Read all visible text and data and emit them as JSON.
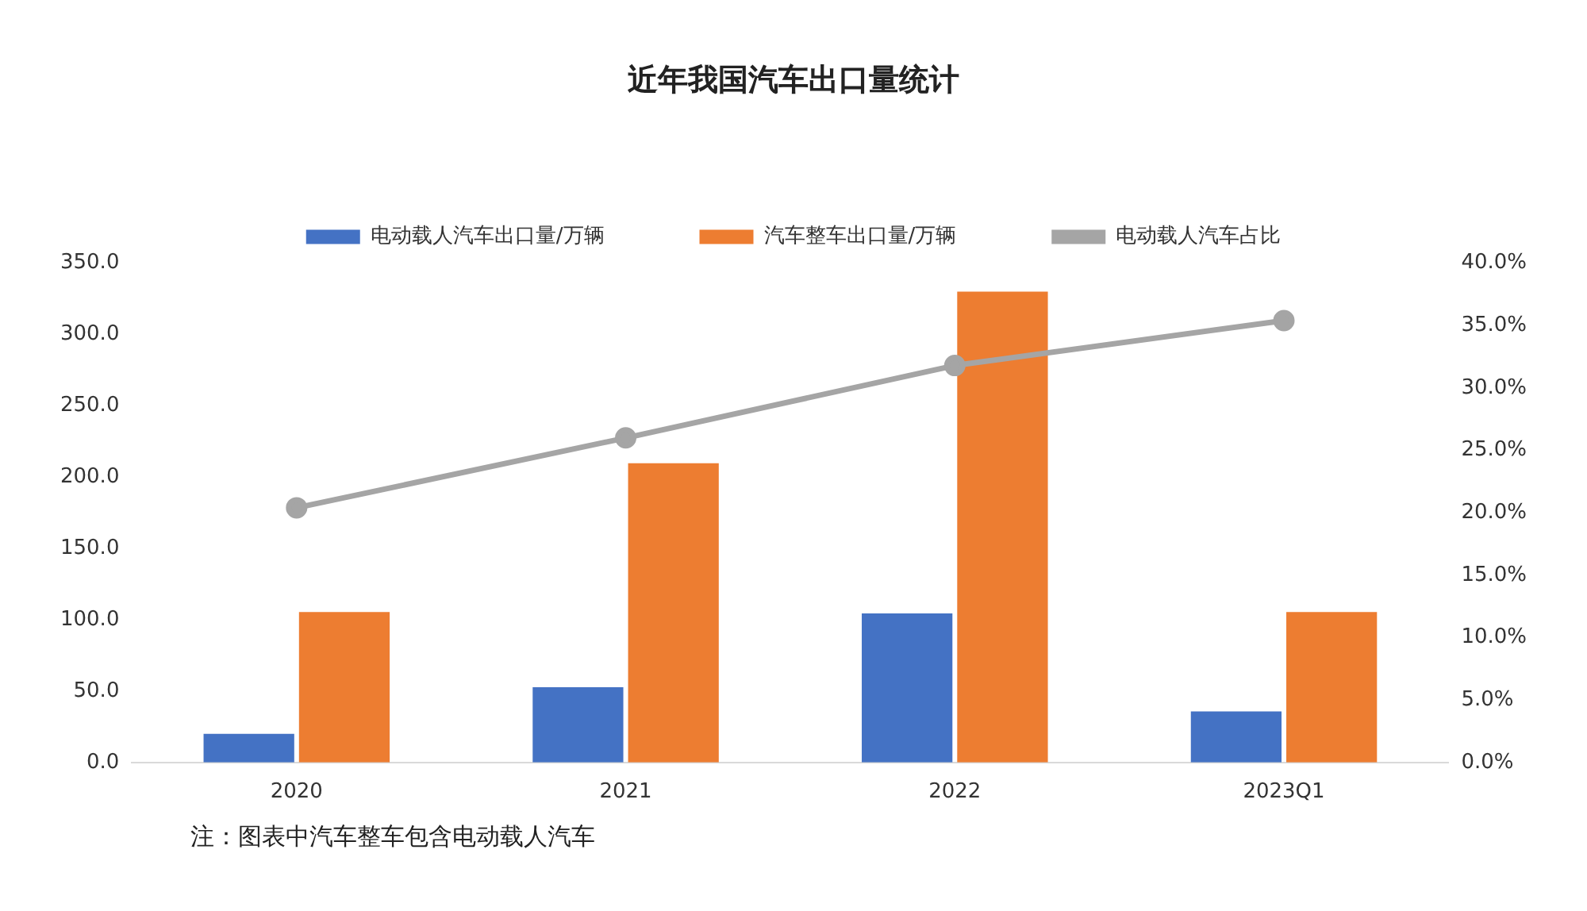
{
  "chart_data": {
    "type": "bar",
    "title": "近年我国汽车出口量统计",
    "categories": [
      "2020",
      "2021",
      "2022",
      "2023Q1"
    ],
    "series": [
      {
        "name": "电动载人汽车出口量/万辆",
        "color": "#4472c4",
        "values": [
          20.0,
          52.7,
          104.4,
          35.8
        ]
      },
      {
        "name": "汽车整车出口量/万辆",
        "color": "#ed7d31",
        "values": [
          105.4,
          209.8,
          330.0,
          105.4
        ]
      },
      {
        "name": "电动载人汽车占比",
        "color": "#a5a5a5",
        "type": "line",
        "axis": "y2",
        "marker": "circle",
        "line_style": "solid",
        "values": [
          20.4,
          26.0,
          31.8,
          35.4
        ]
      }
    ],
    "ylim": [
      0,
      350
    ],
    "yticks": [
      {
        "value": 0,
        "label": "0.0"
      },
      {
        "value": 50,
        "label": "50.0"
      },
      {
        "value": 100,
        "label": "100.0"
      },
      {
        "value": 150,
        "label": "150.0"
      },
      {
        "value": 200,
        "label": "200.0"
      },
      {
        "value": 250,
        "label": "250.0"
      },
      {
        "value": 300,
        "label": "300.0"
      },
      {
        "value": 350,
        "label": "350.0"
      }
    ],
    "y2lim": [
      0,
      40
    ],
    "y2ticks": [
      {
        "value": 0,
        "label": "0.0%"
      },
      {
        "value": 5,
        "label": "5.0%"
      },
      {
        "value": 10,
        "label": "10.0%"
      },
      {
        "value": 15,
        "label": "15.0%"
      },
      {
        "value": 20,
        "label": "20.0%"
      },
      {
        "value": 25,
        "label": "25.0%"
      },
      {
        "value": 30,
        "label": "30.0%"
      },
      {
        "value": 35,
        "label": "35.0%"
      },
      {
        "value": 40,
        "label": "40.0%"
      }
    ],
    "grid": false,
    "legend": "top",
    "annotations": [
      "注：图表中汽车整车包含电动载人汽车"
    ]
  }
}
